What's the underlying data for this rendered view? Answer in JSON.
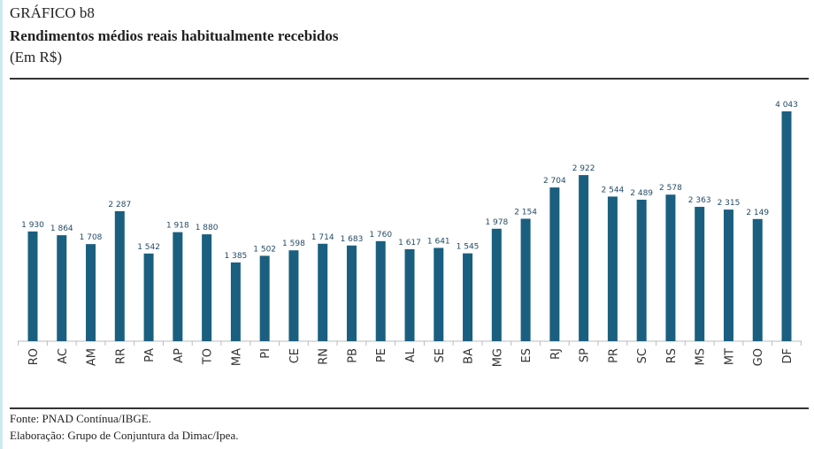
{
  "header": {
    "label": "GRÁFICO b8",
    "title": "Rendimentos médios reais habitualmente recebidos",
    "unit": "(Em R$)"
  },
  "footer": {
    "source": "Fonte: PNAD Contínua/IBGE.",
    "elaboration": "Elaboração: Grupo de Conjuntura da Dimac/Ipea."
  },
  "colors": {
    "bar": "#1a5f7f"
  },
  "chart_data": {
    "type": "bar",
    "title": "Rendimentos médios reais habitualmente recebidos",
    "xlabel": "",
    "ylabel": "Em R$",
    "ylim": [
      0,
      4043
    ],
    "grid": false,
    "categories": [
      "RO",
      "AC",
      "AM",
      "RR",
      "PA",
      "AP",
      "TO",
      "MA",
      "PI",
      "CE",
      "RN",
      "PB",
      "PE",
      "AL",
      "SE",
      "BA",
      "MG",
      "ES",
      "RJ",
      "SP",
      "PR",
      "SC",
      "RS",
      "MS",
      "MT",
      "GO",
      "DF"
    ],
    "values": [
      1930,
      1864,
      1708,
      2287,
      1542,
      1918,
      1880,
      1385,
      1502,
      1598,
      1714,
      1683,
      1760,
      1617,
      1641,
      1545,
      1978,
      2154,
      2704,
      2922,
      2544,
      2489,
      2578,
      2363,
      2315,
      2149,
      4043
    ],
    "labels": [
      "1 930",
      "1 864",
      "1 708",
      "2 287",
      "1 542",
      "1 918",
      "1 880",
      "1 385",
      "1 502",
      "1 598",
      "1 714",
      "1 683",
      "1 760",
      "1 617",
      "1 641",
      "1 545",
      "1 978",
      "2 154",
      "2 704",
      "2 922",
      "2 544",
      "2 489",
      "2 578",
      "2 363",
      "2 315",
      "2 149",
      "4 043"
    ]
  }
}
